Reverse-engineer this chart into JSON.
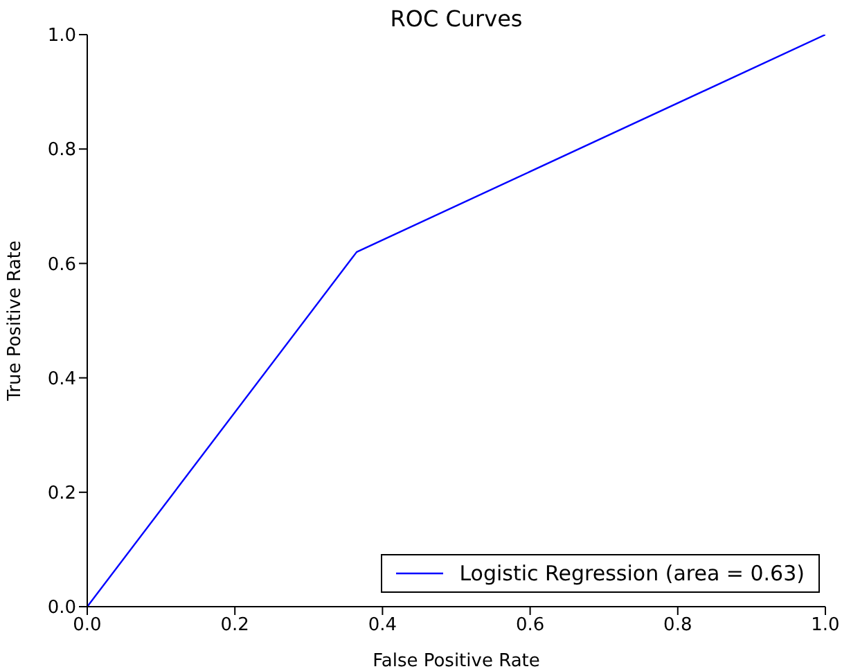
{
  "chart_data": {
    "type": "line",
    "title": "ROC Curves",
    "xlabel": "False Positive Rate",
    "ylabel": "True Positive Rate",
    "x": [
      0,
      0.365,
      1
    ],
    "series": [
      {
        "name": "Logistic Regression (area = 0.63)",
        "color": "#0000ff",
        "values": [
          0,
          0.62,
          1
        ]
      }
    ],
    "xlim": [
      0,
      1
    ],
    "ylim": [
      0,
      1
    ],
    "xticks": [
      {
        "value": 0,
        "label": "0.0"
      },
      {
        "value": 0.2,
        "label": "0.2"
      },
      {
        "value": 0.4,
        "label": "0.4"
      },
      {
        "value": 0.6,
        "label": "0.6"
      },
      {
        "value": 0.8,
        "label": "0.8"
      },
      {
        "value": 1,
        "label": "1.0"
      }
    ],
    "yticks": [
      {
        "value": 0,
        "label": "0.0"
      },
      {
        "value": 0.2,
        "label": "0.2"
      },
      {
        "value": 0.4,
        "label": "0.4"
      },
      {
        "value": 0.6,
        "label": "0.6"
      },
      {
        "value": 0.8,
        "label": "0.8"
      },
      {
        "value": 1,
        "label": "1.0"
      }
    ],
    "legend": "bottom right",
    "grid": false,
    "marker": "none",
    "line_style": "solid"
  }
}
